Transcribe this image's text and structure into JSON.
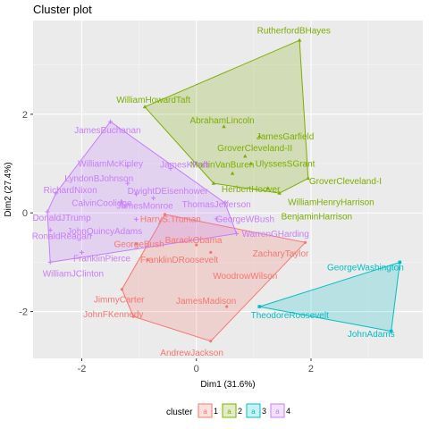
{
  "chart_data": {
    "type": "scatter",
    "title": "Cluster plot",
    "xlabel": "Dim1 (31.6%)",
    "ylabel": "Dim2 (27.4%)",
    "xlim": [
      -2.85,
      3.95
    ],
    "ylim": [
      -2.95,
      3.9
    ],
    "xticks": [
      -2,
      0,
      2
    ],
    "yticks": [
      -2,
      0,
      2
    ],
    "xtick_labels": [
      "-2",
      "0",
      "2"
    ],
    "ytick_labels": [
      "-2",
      "0",
      "2"
    ],
    "grid": true,
    "legend": {
      "title": "cluster",
      "position": "bottom",
      "entries": [
        "1",
        "2",
        "3",
        "4"
      ],
      "marker": "a"
    },
    "colors": {
      "1": "#F8766D",
      "2": "#7CAE00",
      "3": "#00BFC4",
      "4": "#C77CFF"
    },
    "hull_order": {
      "1": [
        "HarryS.Truman",
        "ZacharyTaylor",
        "AndrewJackson",
        "JohnFKennedy",
        "JimmyCarter"
      ],
      "2": [
        "WilliamHowardTaft",
        "RutherfordBHayes",
        "GroverCleveland-I",
        "BenjaminHarrison",
        "HerbertHoover"
      ],
      "3": [
        "GeorgeWashington",
        "JohnAdams",
        "TheodoreRoosevelt"
      ],
      "4": [
        "JamesBuchanan",
        "ThomasJefferson",
        "WarrenGHarding",
        "WilliamJClinton",
        "DonaldJTrump",
        "RichardNixon"
      ]
    },
    "points": [
      {
        "id": "HarryS.Truman",
        "label": "HarryS.Truman",
        "cluster": "1",
        "x": -0.55,
        "y": -0.03,
        "lx": -0.45,
        "ly": -0.12
      },
      {
        "id": "GeorgeBush",
        "label": "GeorgeBush",
        "cluster": "1",
        "x": -1.05,
        "y": -0.63,
        "lx": -1.0,
        "ly": -0.63
      },
      {
        "id": "BarackObama",
        "label": "BarackObama",
        "cluster": "1",
        "x": 0.0,
        "y": -0.65,
        "lx": -0.05,
        "ly": -0.55
      },
      {
        "id": "FranklinDRoosevelt",
        "label": "FranklinDRoosevelt",
        "cluster": "1",
        "x": -0.85,
        "y": -0.95,
        "lx": -0.3,
        "ly": -0.95
      },
      {
        "id": "WoodrowWilson",
        "label": "WoodrowWilson",
        "cluster": "1",
        "x": 0.25,
        "y": -0.8,
        "lx": 0.85,
        "ly": -1.27
      },
      {
        "id": "ZacharyTaylor",
        "label": "ZacharyTaylor",
        "cluster": "1",
        "x": 1.9,
        "y": -0.6,
        "lx": 1.47,
        "ly": -0.82
      },
      {
        "id": "JimmyCarter",
        "label": "JimmyCarter",
        "cluster": "1",
        "x": -1.3,
        "y": -1.55,
        "lx": -1.35,
        "ly": -1.75
      },
      {
        "id": "JamesMadison",
        "label": "JamesMadison",
        "cluster": "1",
        "x": 0.53,
        "y": -1.9,
        "lx": 0.17,
        "ly": -1.78
      },
      {
        "id": "JohnFKennedy",
        "label": "JohnFKennedy",
        "cluster": "1",
        "x": -1.1,
        "y": -2.1,
        "lx": -1.45,
        "ly": -2.05
      },
      {
        "id": "AndrewJackson",
        "label": "AndrewJackson",
        "cluster": "1",
        "x": 0.25,
        "y": -2.6,
        "lx": -0.08,
        "ly": -2.83
      },
      {
        "id": "RutherfordBHayes",
        "label": "RutherfordBHayes",
        "cluster": "2",
        "x": 1.8,
        "y": 3.5,
        "lx": 1.7,
        "ly": 3.7
      },
      {
        "id": "WilliamHowardTaft",
        "label": "WilliamHowardTaft",
        "cluster": "2",
        "x": -0.9,
        "y": 2.15,
        "lx": -0.75,
        "ly": 2.3
      },
      {
        "id": "AbrahamLincoln",
        "label": "AbrahamLincoln",
        "cluster": "2",
        "x": 0.48,
        "y": 1.75,
        "lx": 0.45,
        "ly": 1.88
      },
      {
        "id": "JamesGarfield",
        "label": "JamesGarfield",
        "cluster": "2",
        "x": 1.1,
        "y": 1.55,
        "lx": 1.55,
        "ly": 1.55
      },
      {
        "id": "GroverCleveland-II",
        "label": "GroverCleveland-II",
        "cluster": "2",
        "x": 0.85,
        "y": 1.15,
        "lx": 1.02,
        "ly": 1.32
      },
      {
        "id": "UlyssesSGrant",
        "label": "UlyssesSGrant",
        "cluster": "2",
        "x": 0.95,
        "y": 1.0,
        "lx": 1.55,
        "ly": 1.0
      },
      {
        "id": "GroverCleveland-I",
        "label": "GroverCleveland-I",
        "cluster": "2",
        "x": 1.95,
        "y": 0.7,
        "lx": 2.6,
        "ly": 0.65
      },
      {
        "id": "MartinVanBuren",
        "label": "MartinVanBuren",
        "cluster": "2",
        "x": 0.63,
        "y": 0.8,
        "lx": 0.45,
        "ly": 0.98
      },
      {
        "id": "HerbertHoover",
        "label": "HerbertHoover",
        "cluster": "2",
        "x": 0.3,
        "y": 0.6,
        "lx": 0.95,
        "ly": 0.48
      },
      {
        "id": "WilliamHenryHarrison",
        "label": "WilliamHenryHarrison",
        "cluster": "2",
        "x": 1.25,
        "y": 0.5,
        "lx": 2.35,
        "ly": 0.22
      },
      {
        "id": "BenjaminHarrison",
        "label": "BenjaminHarrison",
        "cluster": "2",
        "x": 1.45,
        "y": 0.4,
        "lx": 2.1,
        "ly": -0.07
      },
      {
        "id": "GeorgeWashington",
        "label": "GeorgeWashington",
        "cluster": "3",
        "x": 3.55,
        "y": -1.0,
        "lx": 2.95,
        "ly": -1.1
      },
      {
        "id": "TheodoreRoosevelt",
        "label": "TheodoreRoosevelt",
        "cluster": "3",
        "x": 1.1,
        "y": -1.9,
        "lx": 1.63,
        "ly": -2.07
      },
      {
        "id": "JohnAdams",
        "label": "JohnAdams",
        "cluster": "3",
        "x": 3.4,
        "y": -2.4,
        "lx": 3.05,
        "ly": -2.45
      },
      {
        "id": "JamesBuchanan",
        "label": "JamesBuchanan",
        "cluster": "4",
        "x": -1.5,
        "y": 1.85,
        "lx": -1.55,
        "ly": 1.68
      },
      {
        "id": "WilliamMcKinley",
        "label": "WilliamMcKinley",
        "cluster": "4",
        "x": -1.2,
        "y": 0.95,
        "lx": -1.5,
        "ly": 1.0
      },
      {
        "id": "JamesKPolk",
        "label": "JamesKPolk",
        "cluster": "4",
        "x": -0.45,
        "y": 0.9,
        "lx": -0.2,
        "ly": 0.98
      },
      {
        "id": "LyndonBJohnson",
        "label": "LyndonBJohnson",
        "cluster": "4",
        "x": -1.2,
        "y": 0.6,
        "lx": -1.7,
        "ly": 0.7
      },
      {
        "id": "RichardNixon",
        "label": "RichardNixon",
        "cluster": "4",
        "x": -2.45,
        "y": 0.4,
        "lx": -2.2,
        "ly": 0.47
      },
      {
        "id": "DwightDEisenhower",
        "label": "DwightDEisenhower",
        "cluster": "4",
        "x": -1.05,
        "y": 0.38,
        "lx": -0.5,
        "ly": 0.45
      },
      {
        "id": "CalvinCoolidge",
        "label": "CalvinCoolidge",
        "cluster": "4",
        "x": -1.3,
        "y": 0.22,
        "lx": -1.65,
        "ly": 0.2
      },
      {
        "id": "JamesMonroe",
        "label": "JamesMonroe",
        "cluster": "4",
        "x": -0.75,
        "y": 0.3,
        "lx": -0.9,
        "ly": 0.15
      },
      {
        "id": "ThomasJefferson",
        "label": "ThomasJefferson",
        "cluster": "4",
        "x": 0.5,
        "y": 0.2,
        "lx": 0.35,
        "ly": 0.18
      },
      {
        "id": "DonaldJTrump",
        "label": "DonaldJTrump",
        "cluster": "4",
        "x": -2.6,
        "y": 0.02,
        "lx": -2.35,
        "ly": -0.1
      },
      {
        "id": "JohnQuincyAdams",
        "label": "JohnQuincyAdams",
        "cluster": "4",
        "x": -1.05,
        "y": -0.13,
        "lx": -1.6,
        "ly": -0.37
      },
      {
        "id": "GeorgeWBush",
        "label": "GeorgeWBush",
        "cluster": "4",
        "x": 0.35,
        "y": -0.12,
        "lx": 0.85,
        "ly": -0.12
      },
      {
        "id": "RonaldReagan",
        "label": "RonaldReagan",
        "cluster": "4",
        "x": -2.55,
        "y": -0.35,
        "lx": -2.35,
        "ly": -0.47
      },
      {
        "id": "WarrenGHarding",
        "label": "WarrenGHarding",
        "cluster": "4",
        "x": 0.7,
        "y": -0.42,
        "lx": 1.38,
        "ly": -0.42
      },
      {
        "id": "FranklinPierce",
        "label": "FranklinPierce",
        "cluster": "4",
        "x": -2.0,
        "y": -0.8,
        "lx": -1.65,
        "ly": -0.92
      },
      {
        "id": "WilliamJClinton",
        "label": "WilliamJClinton",
        "cluster": "4",
        "x": -2.55,
        "y": -1.0,
        "lx": -2.15,
        "ly": -1.23
      }
    ]
  }
}
